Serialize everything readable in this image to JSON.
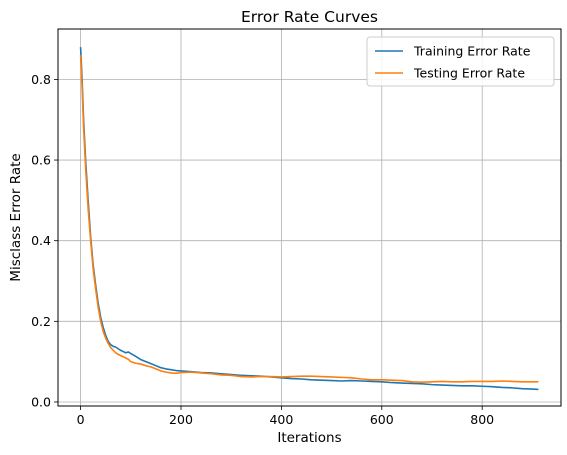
{
  "chart_data": {
    "type": "line",
    "title": "Error Rate Curves",
    "xlabel": "Iterations",
    "ylabel": "Misclass Error Rate",
    "xlim": [
      -45,
      957
    ],
    "ylim": [
      -0.01,
      0.925
    ],
    "x_ticks": [
      0,
      200,
      400,
      600,
      800
    ],
    "x_tick_labels": [
      "0",
      "200",
      "400",
      "600",
      "800"
    ],
    "y_ticks": [
      0.0,
      0.2,
      0.4,
      0.6,
      0.8
    ],
    "y_tick_labels": [
      "0.0",
      "0.2",
      "0.4",
      "0.6",
      "0.8"
    ],
    "grid": true,
    "legend_position": "top-right",
    "series": [
      {
        "name": "Training Error Rate",
        "color": "#1f77b4",
        "points": [
          [
            0,
            0.88
          ],
          [
            3,
            0.8
          ],
          [
            6,
            0.7
          ],
          [
            10,
            0.6
          ],
          [
            15,
            0.5
          ],
          [
            20,
            0.41
          ],
          [
            25,
            0.34
          ],
          [
            30,
            0.29
          ],
          [
            35,
            0.245
          ],
          [
            40,
            0.21
          ],
          [
            45,
            0.185
          ],
          [
            50,
            0.165
          ],
          [
            55,
            0.15
          ],
          [
            60,
            0.142
          ],
          [
            65,
            0.138
          ],
          [
            70,
            0.136
          ],
          [
            75,
            0.132
          ],
          [
            80,
            0.128
          ],
          [
            85,
            0.125
          ],
          [
            90,
            0.122
          ],
          [
            95,
            0.124
          ],
          [
            100,
            0.12
          ],
          [
            110,
            0.113
          ],
          [
            120,
            0.105
          ],
          [
            130,
            0.1
          ],
          [
            140,
            0.095
          ],
          [
            150,
            0.09
          ],
          [
            160,
            0.085
          ],
          [
            170,
            0.082
          ],
          [
            180,
            0.08
          ],
          [
            190,
            0.078
          ],
          [
            200,
            0.077
          ],
          [
            220,
            0.075
          ],
          [
            240,
            0.073
          ],
          [
            260,
            0.072
          ],
          [
            280,
            0.07
          ],
          [
            300,
            0.068
          ],
          [
            320,
            0.066
          ],
          [
            340,
            0.065
          ],
          [
            360,
            0.064
          ],
          [
            380,
            0.062
          ],
          [
            400,
            0.06
          ],
          [
            420,
            0.058
          ],
          [
            440,
            0.057
          ],
          [
            460,
            0.055
          ],
          [
            480,
            0.054
          ],
          [
            500,
            0.053
          ],
          [
            520,
            0.052
          ],
          [
            540,
            0.053
          ],
          [
            560,
            0.052
          ],
          [
            580,
            0.051
          ],
          [
            600,
            0.05
          ],
          [
            620,
            0.048
          ],
          [
            640,
            0.047
          ],
          [
            660,
            0.046
          ],
          [
            680,
            0.045
          ],
          [
            700,
            0.043
          ],
          [
            720,
            0.042
          ],
          [
            740,
            0.041
          ],
          [
            760,
            0.04
          ],
          [
            780,
            0.04
          ],
          [
            800,
            0.039
          ],
          [
            820,
            0.038
          ],
          [
            840,
            0.036
          ],
          [
            860,
            0.035
          ],
          [
            880,
            0.033
          ],
          [
            900,
            0.032
          ],
          [
            912,
            0.031
          ]
        ]
      },
      {
        "name": "Testing Error Rate",
        "color": "#ff7f0e",
        "points": [
          [
            0,
            0.86
          ],
          [
            3,
            0.78
          ],
          [
            6,
            0.68
          ],
          [
            10,
            0.58
          ],
          [
            15,
            0.48
          ],
          [
            20,
            0.4
          ],
          [
            25,
            0.33
          ],
          [
            30,
            0.28
          ],
          [
            35,
            0.235
          ],
          [
            40,
            0.2
          ],
          [
            45,
            0.175
          ],
          [
            50,
            0.158
          ],
          [
            55,
            0.145
          ],
          [
            60,
            0.135
          ],
          [
            65,
            0.128
          ],
          [
            70,
            0.122
          ],
          [
            75,
            0.118
          ],
          [
            80,
            0.115
          ],
          [
            85,
            0.112
          ],
          [
            90,
            0.109
          ],
          [
            95,
            0.106
          ],
          [
            100,
            0.1
          ],
          [
            110,
            0.096
          ],
          [
            120,
            0.094
          ],
          [
            130,
            0.09
          ],
          [
            140,
            0.087
          ],
          [
            150,
            0.082
          ],
          [
            160,
            0.077
          ],
          [
            170,
            0.074
          ],
          [
            180,
            0.072
          ],
          [
            190,
            0.071
          ],
          [
            200,
            0.073
          ],
          [
            220,
            0.074
          ],
          [
            240,
            0.072
          ],
          [
            260,
            0.07
          ],
          [
            280,
            0.067
          ],
          [
            300,
            0.066
          ],
          [
            320,
            0.063
          ],
          [
            340,
            0.062
          ],
          [
            360,
            0.063
          ],
          [
            380,
            0.063
          ],
          [
            400,
            0.062
          ],
          [
            420,
            0.063
          ],
          [
            440,
            0.064
          ],
          [
            460,
            0.064
          ],
          [
            480,
            0.063
          ],
          [
            500,
            0.062
          ],
          [
            520,
            0.061
          ],
          [
            540,
            0.06
          ],
          [
            560,
            0.057
          ],
          [
            580,
            0.055
          ],
          [
            600,
            0.055
          ],
          [
            620,
            0.054
          ],
          [
            640,
            0.053
          ],
          [
            660,
            0.05
          ],
          [
            680,
            0.049
          ],
          [
            700,
            0.05
          ],
          [
            720,
            0.051
          ],
          [
            740,
            0.05
          ],
          [
            760,
            0.05
          ],
          [
            780,
            0.051
          ],
          [
            800,
            0.051
          ],
          [
            820,
            0.051
          ],
          [
            840,
            0.052
          ],
          [
            860,
            0.051
          ],
          [
            880,
            0.05
          ],
          [
            900,
            0.05
          ],
          [
            912,
            0.05
          ]
        ]
      }
    ]
  }
}
